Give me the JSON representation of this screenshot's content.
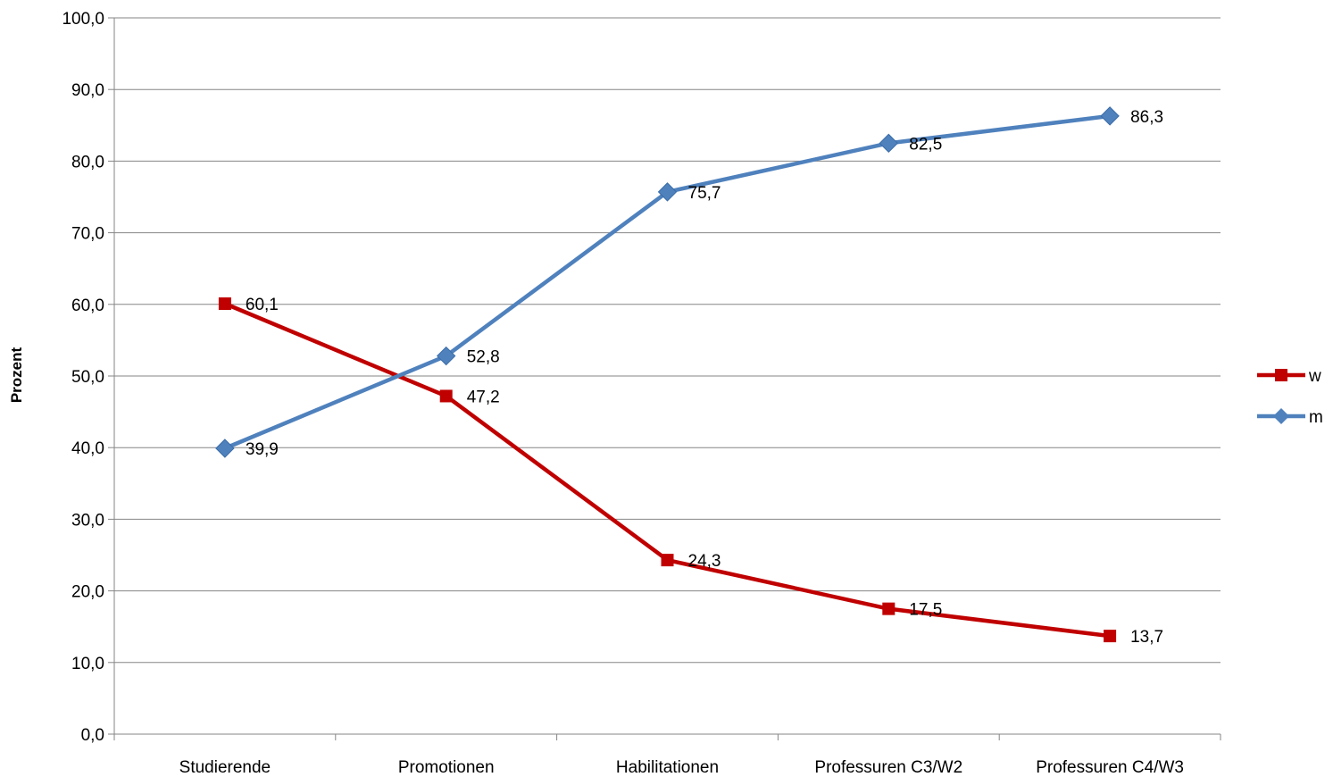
{
  "chart_data": {
    "type": "line",
    "title": "",
    "xlabel": "",
    "ylabel": "Prozent",
    "ylim": [
      0,
      100
    ],
    "y_ticks": [
      "0,0",
      "10,0",
      "20,0",
      "30,0",
      "40,0",
      "50,0",
      "60,0",
      "70,0",
      "80,0",
      "90,0",
      "100,0"
    ],
    "y_tick_values": [
      0,
      10,
      20,
      30,
      40,
      50,
      60,
      70,
      80,
      90,
      100
    ],
    "categories": [
      "Studierende",
      "Promotionen",
      "Habilitationen",
      "Professuren C3/W2",
      "Professuren C4/W3"
    ],
    "grid": true,
    "legend_position": "right",
    "series": [
      {
        "name": "w",
        "values": [
          60.1,
          47.2,
          24.3,
          17.5,
          13.7
        ],
        "labels": [
          "60,1",
          "47,2",
          "24,3",
          "17,5",
          "13,7"
        ],
        "color": "#C00000",
        "marker": "square"
      },
      {
        "name": "m",
        "values": [
          39.9,
          52.8,
          75.7,
          82.5,
          86.3
        ],
        "labels": [
          "39,9",
          "52,8",
          "75,7",
          "82,5",
          "86,3"
        ],
        "color": "#4F81BD",
        "marker": "diamond"
      }
    ]
  }
}
